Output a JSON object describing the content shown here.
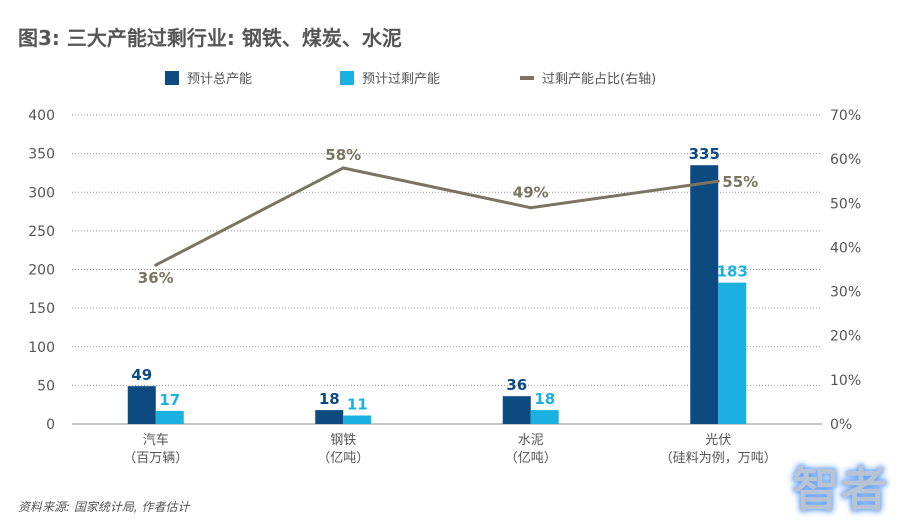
{
  "title": "图3: 三大产能过剩行业: 钢铁、煤炭、水泥",
  "source": "资料来源: 国家统计局, 作者估计",
  "watermark": "智者",
  "chart_data": {
    "type": "bar+line",
    "categories": [
      "汽车\n（百万辆）",
      "钢铁\n（亿吨）",
      "水泥\n（亿吨）",
      "光伏\n（硅料为例，万吨）"
    ],
    "category_lines": [
      [
        "汽车",
        "（百万辆）"
      ],
      [
        "钢铁",
        "（亿吨）"
      ],
      [
        "水泥",
        "（亿吨）"
      ],
      [
        "光伏",
        "（硅料为例，万吨）"
      ]
    ],
    "series": [
      {
        "name": "预计总产能",
        "type": "bar",
        "axis": "left",
        "color": "#0d4a80",
        "values": [
          49,
          18,
          36,
          335
        ]
      },
      {
        "name": "预计过剩产能",
        "type": "bar",
        "axis": "left",
        "color": "#1ab0e0",
        "values": [
          17,
          11,
          18,
          183
        ]
      },
      {
        "name": "过剩产能占比(右轴)",
        "type": "line",
        "axis": "right",
        "color": "#7a7460",
        "values": [
          36,
          58,
          49,
          55
        ],
        "labels": [
          "36%",
          "58%",
          "49%",
          "55%"
        ]
      }
    ],
    "ylim_left": [
      0,
      400
    ],
    "yticks_left": [
      "0",
      "50",
      "100",
      "150",
      "200",
      "250",
      "300",
      "350",
      "400"
    ],
    "ylim_right": [
      0,
      70
    ],
    "yticks_right": [
      "0%",
      "10%",
      "20%",
      "30%",
      "40%",
      "50%",
      "60%",
      "70%"
    ],
    "grid": true,
    "legend_position": "top"
  }
}
